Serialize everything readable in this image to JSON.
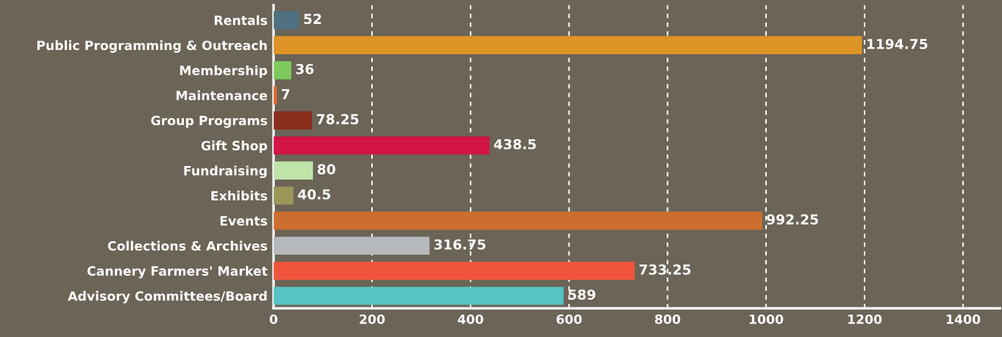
{
  "chart_data": {
    "type": "bar",
    "orientation": "horizontal",
    "categories": [
      "Rentals",
      "Public Programming & Outreach",
      "Membership",
      "Maintenance",
      "Group Programs",
      "Gift Shop",
      "Fundraising",
      "Exhibits",
      "Events",
      "Collections & Archives",
      "Cannery Farmers' Market",
      "Advisory Committees/Board"
    ],
    "values": [
      52,
      1194.75,
      36,
      7,
      78.25,
      438.5,
      80,
      40.5,
      992.25,
      316.75,
      733.25,
      589
    ],
    "colors": [
      "#4f7080",
      "#dd9426",
      "#7dc95e",
      "#d96a2b",
      "#8a2d1c",
      "#d31446",
      "#bfe3a8",
      "#9b9558",
      "#cc6e2e",
      "#b6b9bb",
      "#f0553c",
      "#55c4c4"
    ],
    "xlim": [
      0,
      1475
    ],
    "xticks": [
      0,
      200,
      400,
      600,
      800,
      1000,
      1200,
      1400
    ],
    "grid": "x",
    "data_labels": true
  }
}
